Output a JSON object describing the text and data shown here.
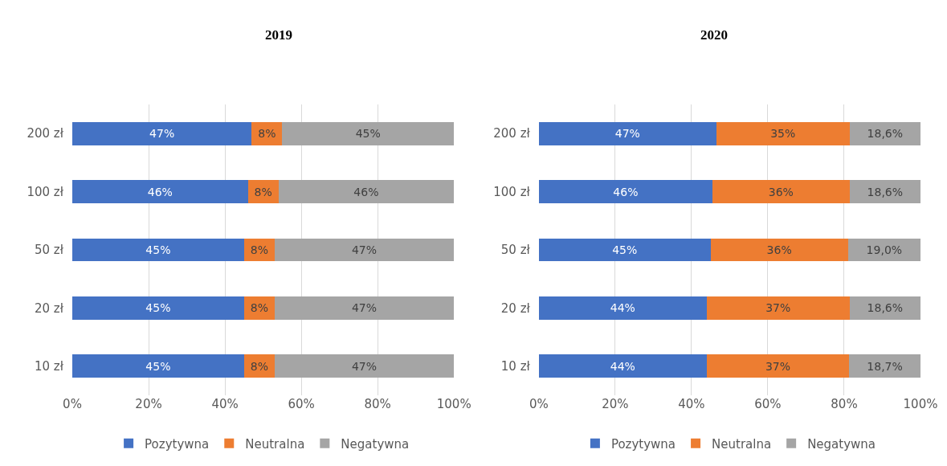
{
  "chart_data": [
    {
      "type": "bar",
      "title": "2019",
      "orientation": "horizontal",
      "stacked": true,
      "categories": [
        "200 zł",
        "100 zł",
        "50 zł",
        "20 zł",
        "10 zł"
      ],
      "xlim": [
        0,
        100
      ],
      "xticks": [
        {
          "value": 0,
          "label": "0%"
        },
        {
          "value": 20,
          "label": "20%"
        },
        {
          "value": 40,
          "label": "40%"
        },
        {
          "value": 60,
          "label": "60%"
        },
        {
          "value": 80,
          "label": "80%"
        },
        {
          "value": 100,
          "label": "100%"
        }
      ],
      "grid": "x",
      "legend": "bottom",
      "series": [
        {
          "name": "Pozytywna",
          "color": "#4472c4",
          "values": [
            47,
            46,
            45,
            45,
            45
          ],
          "value_labels": [
            "47%",
            "46%",
            "45%",
            "45%",
            "45%"
          ]
        },
        {
          "name": "Neutralna",
          "color": "#ed7d31",
          "values": [
            8,
            8,
            8,
            8,
            8
          ],
          "value_labels": [
            "8%",
            "8%",
            "8%",
            "8%",
            "8%"
          ]
        },
        {
          "name": "Negatywna",
          "color": "#a5a5a5",
          "values": [
            45,
            46,
            47,
            47,
            47
          ],
          "value_labels": [
            "45%",
            "46%",
            "47%",
            "47%",
            "47%"
          ]
        }
      ]
    },
    {
      "type": "bar",
      "title": "2020",
      "orientation": "horizontal",
      "stacked": true,
      "categories": [
        "200 zł",
        "100 zł",
        "50 zł",
        "20 zł",
        "10 zł"
      ],
      "xlim": [
        0,
        100
      ],
      "xticks": [
        {
          "value": 0,
          "label": "0%"
        },
        {
          "value": 20,
          "label": "20%"
        },
        {
          "value": 40,
          "label": "40%"
        },
        {
          "value": 60,
          "label": "60%"
        },
        {
          "value": 80,
          "label": "80%"
        },
        {
          "value": 100,
          "label": "100%"
        }
      ],
      "grid": "x",
      "legend": "bottom",
      "series": [
        {
          "name": "Pozytywna",
          "color": "#4472c4",
          "values": [
            46.5,
            45.5,
            45,
            44,
            44
          ],
          "value_labels": [
            "47%",
            "46%",
            "45%",
            "44%",
            "44%"
          ]
        },
        {
          "name": "Neutralna",
          "color": "#ed7d31",
          "values": [
            34.9,
            35.9,
            36,
            37.4,
            37.3
          ],
          "value_labels": [
            "35%",
            "36%",
            "36%",
            "37%",
            "37%"
          ]
        },
        {
          "name": "Negatywna",
          "color": "#a5a5a5",
          "values": [
            18.6,
            18.6,
            19,
            18.6,
            18.7
          ],
          "value_labels": [
            "18,6%",
            "18,6%",
            "19,0%",
            "18,6%",
            "18,7%"
          ]
        }
      ]
    }
  ]
}
